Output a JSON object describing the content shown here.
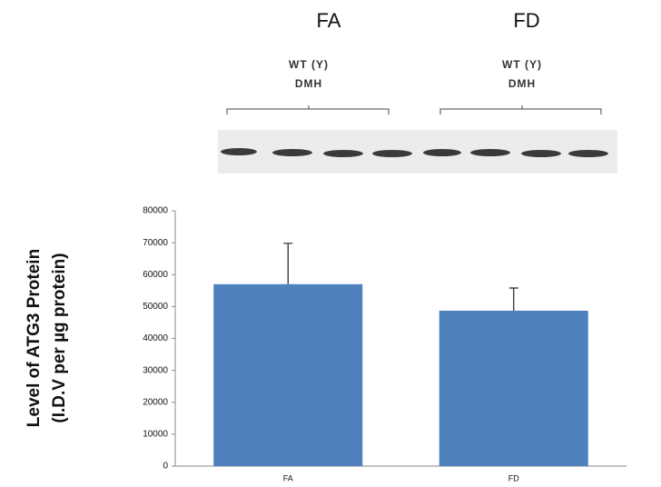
{
  "chart_data": {
    "type": "bar",
    "y_label": [
      "Level of ATG3  Protein",
      "(I.D.V per µg protein)"
    ],
    "categories": [
      "FA",
      "FD"
    ],
    "values": [
      57000,
      48700
    ],
    "errors": [
      12800,
      7100
    ],
    "color": "#4f81bd",
    "ylim": [
      0,
      80000
    ],
    "yticks": [
      0,
      10000,
      20000,
      30000,
      40000,
      50000,
      60000,
      70000,
      80000
    ]
  },
  "blot": {
    "groups": [
      {
        "title": "FA",
        "labels": [
          "WT (Y)",
          "DMH"
        ]
      },
      {
        "title": "FD",
        "labels": [
          "WT (Y)",
          "DMH"
        ]
      }
    ]
  }
}
